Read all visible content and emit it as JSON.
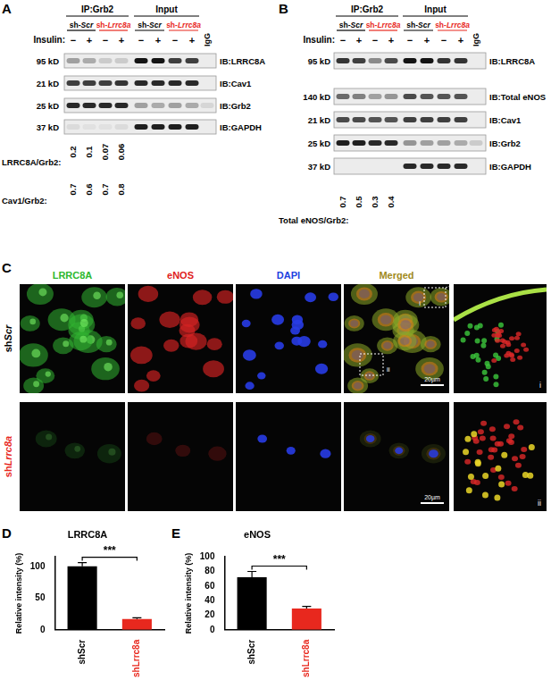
{
  "panels": [
    {
      "label": "A",
      "ip_header": "IP:Grb2",
      "input_header": "Input",
      "groups": [
        {
          "text": "sh-Scr",
          "color": "#000000"
        },
        {
          "text": "sh-Lrrc8a",
          "color": "#e8281e"
        }
      ],
      "treatment_label": "Insulin:",
      "treatment": [
        "−",
        "+",
        "−",
        "+",
        "−",
        "+",
        "−",
        "+"
      ],
      "control_lane": "IgG",
      "rows": [
        {
          "kd": "95 kD",
          "ib": "IB:LRRC8A"
        },
        {
          "kd": "21 kD",
          "ib": "IB:Cav1"
        },
        {
          "kd": "25 kD",
          "ib": "IB:Grb2"
        },
        {
          "kd": "37 kD",
          "ib": "IB:GAPDH"
        }
      ],
      "ratios": [
        {
          "label": "LRRC8A/Grb2:",
          "values": [
            0.2,
            0.1,
            0.07,
            0.06
          ]
        },
        {
          "label": "Cav1/Grb2:",
          "values": [
            0.7,
            0.6,
            0.7,
            0.8
          ]
        }
      ]
    },
    {
      "label": "B",
      "ip_header": "IP:Grb2",
      "input_header": "Input",
      "groups": [
        {
          "text": "sh-Scr",
          "color": "#000000"
        },
        {
          "text": "sh-Lrrc8a",
          "color": "#e8281e"
        }
      ],
      "treatment_label": "Insulin:",
      "treatment": [
        "−",
        "+",
        "−",
        "+",
        "−",
        "+",
        "−",
        "+"
      ],
      "control_lane": "IgG",
      "rows": [
        {
          "kd": "95 kD",
          "ib": "IB:LRRC8A"
        },
        {
          "kd": "140 kD",
          "ib": "IB:Total eNOS"
        },
        {
          "kd": "21 kD",
          "ib": "IB:Cav1"
        },
        {
          "kd": "25 kD",
          "ib": "IB:Grb2"
        },
        {
          "kd": "37 kD",
          "ib": "IB:GAPDH"
        }
      ],
      "ratios": [
        {
          "label": "Total eNOS/Grb2:",
          "values": [
            0.7,
            0.5,
            0.3,
            0.4
          ]
        }
      ]
    },
    {
      "label": "C",
      "columns": [
        {
          "text": "LRRC8A",
          "color": "#2db82d"
        },
        {
          "text": "eNOS",
          "color": "#e02020"
        },
        {
          "text": "DAPI",
          "color": "#2040e0"
        },
        {
          "text": "Merged",
          "color": "#a08a20"
        }
      ],
      "rows": [
        {
          "text": "shScr",
          "color": "#000000",
          "scale_bar": "20µm"
        },
        {
          "text": "shLrrc8a",
          "color": "#e8281e",
          "scale_bar": "20µm"
        }
      ],
      "insets": [
        "i",
        "ii"
      ]
    }
  ],
  "chart_data": [
    {
      "label": "D",
      "type": "bar",
      "title": "LRRC8A",
      "y_label": "Relative intensity (%)",
      "categories": [
        "shScr",
        "shLrrc8a"
      ],
      "values": [
        100,
        17
      ],
      "errors": [
        6,
        2
      ],
      "colors": [
        "#000000",
        "#e8281e"
      ],
      "ylim": [
        0,
        115
      ],
      "yticks": [
        0,
        50,
        100
      ],
      "grid": false,
      "annotations": [
        {
          "text": "***"
        }
      ]
    },
    {
      "label": "E",
      "type": "bar",
      "title": "eNOS",
      "y_label": "Relative intensity (%)",
      "categories": [
        "shScr",
        "shLrrc8a"
      ],
      "values": [
        72,
        29
      ],
      "errors": [
        8,
        3
      ],
      "colors": [
        "#000000",
        "#e8281e"
      ],
      "ylim": [
        0,
        100
      ],
      "yticks": [
        0,
        20,
        40,
        60,
        80,
        100
      ],
      "grid": false,
      "annotations": [
        {
          "text": "***"
        }
      ]
    }
  ]
}
